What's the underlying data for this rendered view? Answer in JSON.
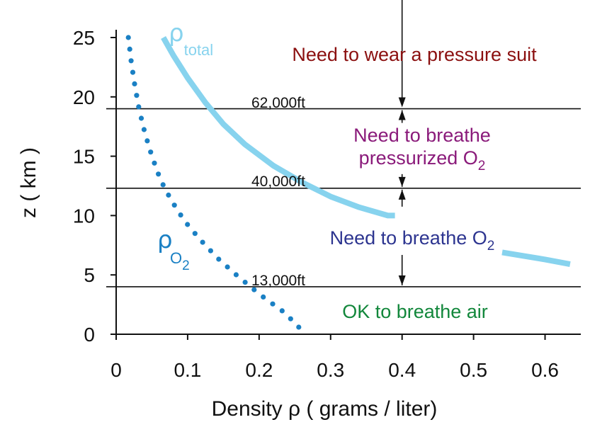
{
  "chart_data": {
    "type": "line",
    "xlabel": "Density ρ ( grams / liter)",
    "ylabel": "z ( km )",
    "xlim": [
      0,
      0.65
    ],
    "ylim": [
      0,
      25
    ],
    "x_ticks": [
      "0",
      "0.1",
      "0.2",
      "0.3",
      "0.4",
      "0.5",
      "0.6"
    ],
    "y_ticks": [
      "0",
      "5",
      "10",
      "15",
      "20",
      "25"
    ],
    "grid": false,
    "legend": "none",
    "series": [
      {
        "name": "ρtotal",
        "name_symbol": "ρ",
        "name_subscript": "total",
        "style": "solid",
        "color": "#87d3ee",
        "x": [
          0.066,
          0.08,
          0.1,
          0.125,
          0.15,
          0.18,
          0.22,
          0.26,
          0.3,
          0.34,
          0.38,
          0.39
        ],
        "y": [
          25,
          23.5,
          21.6,
          19.5,
          17.7,
          16.0,
          14.2,
          12.8,
          11.6,
          10.7,
          10.0,
          10.0
        ]
      },
      {
        "name": "ρtotal",
        "style": "solid",
        "color": "#87d3ee",
        "x": [
          0.54,
          0.57,
          0.6,
          0.635
        ],
        "y": [
          6.9,
          6.6,
          6.3,
          5.9
        ]
      },
      {
        "name": "ρO2",
        "name_symbol": "ρ",
        "name_subscript": "O",
        "name_subscript2": "2",
        "style": "dotted",
        "color": "#1a80c4",
        "x": [
          0.017,
          0.021,
          0.026,
          0.032,
          0.04,
          0.05,
          0.062,
          0.077,
          0.095,
          0.117,
          0.142,
          0.17,
          0.202,
          0.236,
          0.265
        ],
        "y": [
          25,
          23,
          21,
          19,
          17,
          15,
          13,
          11.3,
          9.6,
          8.0,
          6.4,
          4.9,
          3.3,
          1.8,
          0
        ]
      }
    ],
    "altitude_lines": [
      {
        "z": 4.0,
        "label": "13,000ft"
      },
      {
        "z": 12.3,
        "label": "40,000ft"
      },
      {
        "z": 19.0,
        "label": "62,000ft"
      }
    ],
    "zones": [
      {
        "lines": [
          "Need to wear a pressure suit"
        ],
        "color": "#8b1010"
      },
      {
        "lines": [
          "Need to breathe",
          "pressurized O"
        ],
        "sub": "2",
        "color": "#8a1a7a"
      },
      {
        "lines": [
          "Need to breathe O"
        ],
        "sub": "2",
        "color": "#2d3590"
      },
      {
        "lines": [
          "OK to breathe air"
        ],
        "color": "#12873b"
      }
    ],
    "marker_x": 0.4
  }
}
